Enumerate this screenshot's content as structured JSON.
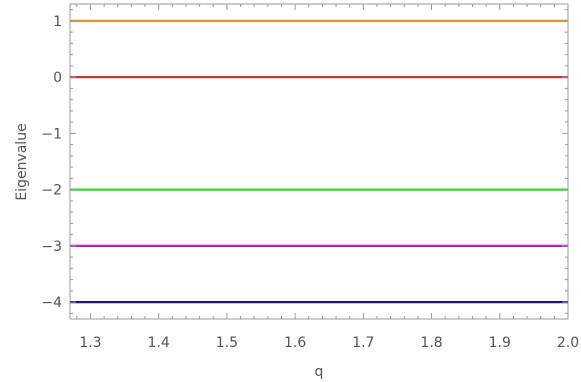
{
  "chart_data": {
    "type": "line",
    "xlabel": "q",
    "ylabel": "Eigenvalue",
    "xlim": [
      1.27,
      2.0
    ],
    "ylim": [
      -4.3,
      1.3
    ],
    "grid": false,
    "legend": "none",
    "x_ticks": [
      "1.3",
      "1.4",
      "1.5",
      "1.6",
      "1.7",
      "1.8",
      "1.9",
      "2.0"
    ],
    "y_ticks": [
      "1",
      "0",
      "−1",
      "−2",
      "−3",
      "−4"
    ],
    "series": [
      {
        "color": "#f0902a",
        "x": [
          1.27,
          2.0
        ],
        "y": [
          1,
          1
        ]
      },
      {
        "color": "#c43a2e",
        "x": [
          1.27,
          2.0
        ],
        "y": [
          0,
          0
        ]
      },
      {
        "color": "#22e022",
        "x": [
          1.27,
          2.0
        ],
        "y": [
          -2,
          -2
        ]
      },
      {
        "color": "#c41fc4",
        "x": [
          1.27,
          2.0
        ],
        "y": [
          -3,
          -3
        ]
      },
      {
        "color": "#1010a8",
        "x": [
          1.27,
          2.0
        ],
        "y": [
          -4,
          -4
        ]
      }
    ]
  }
}
